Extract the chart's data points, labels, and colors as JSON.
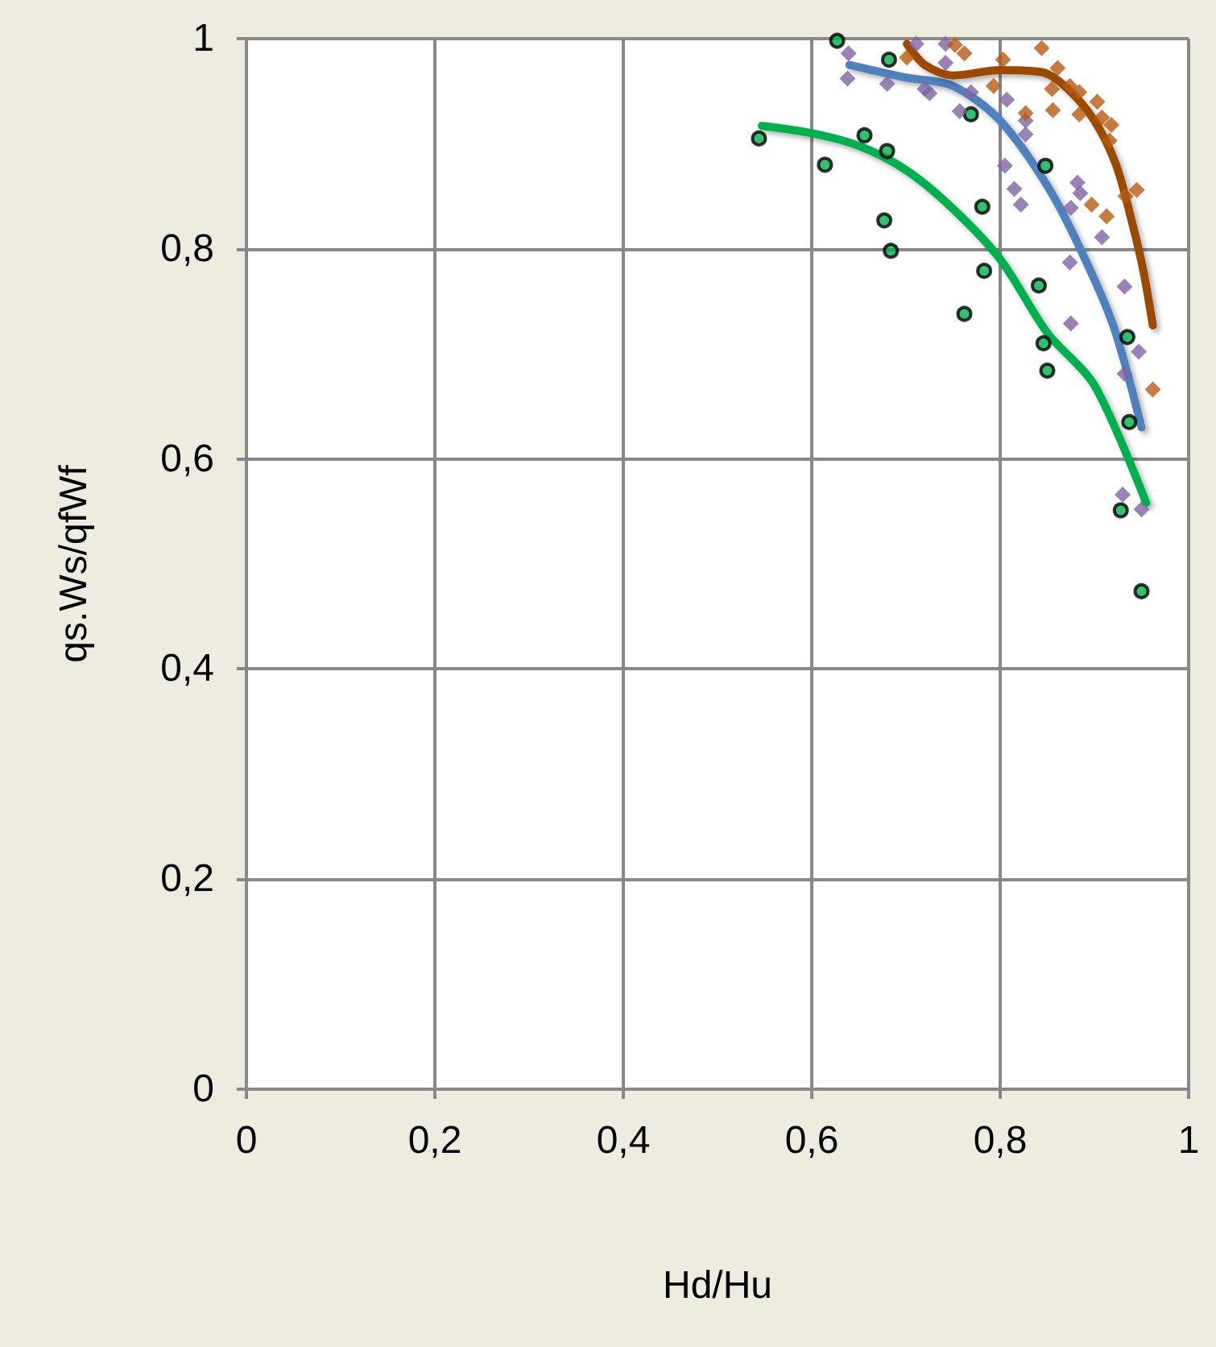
{
  "chart_data": {
    "type": "scatter",
    "xlabel": "Hd/Hu",
    "ylabel": "qs.Ws/qfWf",
    "xlim": [
      0,
      1
    ],
    "ylim": [
      0,
      1
    ],
    "grid": true,
    "xticks": [
      0,
      {
        "value": 0.2,
        "label": "0,2"
      },
      {
        "value": 0.4,
        "label": "0,4"
      },
      {
        "value": 0.6,
        "label": "0,6"
      },
      {
        "value": 0.8,
        "label": "0,8"
      },
      1
    ],
    "yticks": [
      0,
      {
        "value": 0.2,
        "label": "0,2"
      },
      {
        "value": 0.4,
        "label": "0,4"
      },
      {
        "value": 0.6,
        "label": "0,6"
      },
      {
        "value": 0.8,
        "label": "0,8"
      },
      1
    ],
    "series": [
      {
        "marker": "circle",
        "color": "#00b050",
        "x": [
          0.544,
          0.614,
          0.627,
          0.656,
          0.677,
          0.68,
          0.682,
          0.684,
          0.762,
          0.769,
          0.781,
          0.783,
          0.841,
          0.846,
          0.848,
          0.85,
          0.928,
          0.935,
          0.937,
          0.95
        ],
        "values": [
          0.905,
          0.88,
          0.998,
          0.908,
          0.827,
          0.893,
          0.98,
          0.798,
          0.738,
          0.928,
          0.84,
          0.779,
          0.765,
          0.71,
          0.879,
          0.684,
          0.551,
          0.716,
          0.635,
          0.474
        ]
      },
      {
        "marker": "diamond",
        "color": "#8064a2",
        "x": [
          0.638,
          0.639,
          0.68,
          0.711,
          0.72,
          0.725,
          0.742,
          0.742,
          0.757,
          0.769,
          0.805,
          0.807,
          0.815,
          0.822,
          0.827,
          0.827,
          0.874,
          0.875,
          0.875,
          0.882,
          0.885,
          0.908,
          0.93,
          0.932,
          0.932,
          0.947,
          0.95
        ],
        "values": [
          0.962,
          0.986,
          0.957,
          0.995,
          0.952,
          0.948,
          0.977,
          0.995,
          0.931,
          0.949,
          0.879,
          0.942,
          0.857,
          0.842,
          0.922,
          0.909,
          0.787,
          0.839,
          0.729,
          0.863,
          0.853,
          0.811,
          0.566,
          0.764,
          0.681,
          0.702,
          0.552
        ]
      },
      {
        "marker": "diamond",
        "color": "#b85a12",
        "x": [
          0.701,
          0.752,
          0.762,
          0.793,
          0.803,
          0.827,
          0.844,
          0.855,
          0.856,
          0.861,
          0.874,
          0.884,
          0.884,
          0.897,
          0.903,
          0.908,
          0.913,
          0.916,
          0.918,
          0.933,
          0.945,
          0.962
        ],
        "values": [
          0.982,
          0.994,
          0.986,
          0.955,
          0.98,
          0.929,
          0.991,
          0.952,
          0.932,
          0.972,
          0.955,
          0.949,
          0.928,
          0.842,
          0.94,
          0.925,
          0.831,
          0.903,
          0.918,
          0.85,
          0.856,
          0.666
        ]
      },
      {
        "type": "line",
        "marker": "none",
        "color": "#00b050",
        "x": [
          0.547,
          0.6,
          0.65,
          0.7,
          0.75,
          0.8,
          0.85,
          0.9,
          0.955
        ],
        "values": [
          0.917,
          0.91,
          0.898,
          0.875,
          0.838,
          0.79,
          0.72,
          0.67,
          0.558
        ]
      },
      {
        "type": "line",
        "marker": "none",
        "color": "#4f81bd",
        "x": [
          0.64,
          0.7,
          0.75,
          0.8,
          0.85,
          0.885,
          0.92,
          0.95
        ],
        "values": [
          0.975,
          0.963,
          0.955,
          0.922,
          0.86,
          0.8,
          0.727,
          0.63
        ]
      },
      {
        "type": "line",
        "marker": "none",
        "color": "#9c4a06",
        "x": [
          0.701,
          0.72,
          0.75,
          0.8,
          0.845,
          0.872,
          0.9,
          0.923,
          0.94,
          0.952,
          0.962
        ],
        "values": [
          0.995,
          0.975,
          0.965,
          0.97,
          0.968,
          0.952,
          0.922,
          0.88,
          0.825,
          0.779,
          0.727
        ]
      }
    ]
  }
}
